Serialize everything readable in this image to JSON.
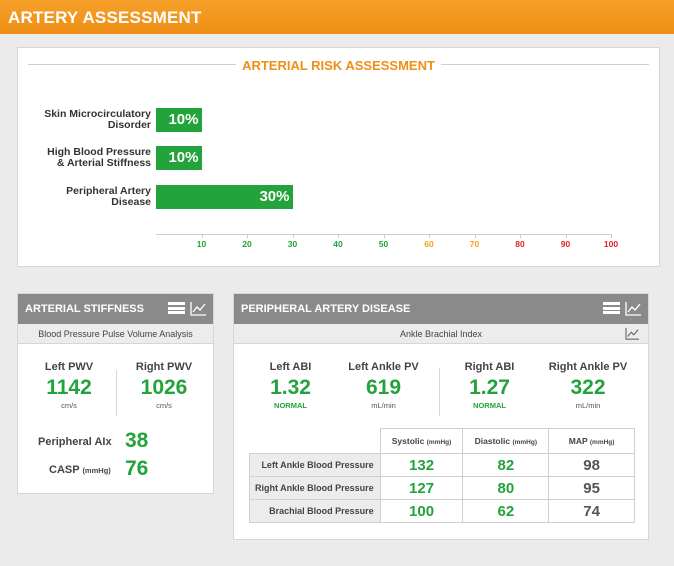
{
  "header": {
    "title": "ARTERY ASSESSMENT"
  },
  "risk": {
    "title": "ARTERIAL RISK ASSESSMENT",
    "items": [
      {
        "label_line1": "Skin Microcirculatory",
        "label_line2": "Disorder",
        "value": 10,
        "value_label": "10%"
      },
      {
        "label_line1": "High Blood Pressure",
        "label_line2": "& Arterial Stiffness",
        "value": 10,
        "value_label": "10%"
      },
      {
        "label_line1": "Peripheral Artery",
        "label_line2": "Disease",
        "value": 30,
        "value_label": "30%"
      }
    ],
    "axis": {
      "ticks": [
        "10",
        "20",
        "30",
        "40",
        "50",
        "60",
        "70",
        "80",
        "90",
        "100"
      ],
      "tick_colors": [
        "#23a33b",
        "#23a33b",
        "#23a33b",
        "#23a33b",
        "#23a33b",
        "#f2a21c",
        "#f2a21c",
        "#e0202a",
        "#e0202a",
        "#e0202a"
      ],
      "max": 100
    },
    "bar_color": "#23a33b"
  },
  "stiffness": {
    "title": "ARTERIAL STIFFNESS",
    "subtitle": "Blood Pressure Pulse Volume Analysis",
    "left_pwv": {
      "label": "Left PWV",
      "value": "1142",
      "unit": "cm/s"
    },
    "right_pwv": {
      "label": "Right PWV",
      "value": "1026",
      "unit": "cm/s"
    },
    "peripheral_aix": {
      "label": "Peripheral AIx",
      "value": "38"
    },
    "casp": {
      "label": "CASP",
      "unit": "(mmHg)",
      "value": "76"
    }
  },
  "pad": {
    "title": "PERIPHERAL ARTERY DISEASE",
    "subtitle": "Ankle Brachial Index",
    "left_abi": {
      "label": "Left ABI",
      "value": "1.32",
      "status": "NORMAL"
    },
    "left_ankle_pv": {
      "label": "Left Ankle PV",
      "value": "619",
      "unit": "mL/min"
    },
    "right_abi": {
      "label": "Right ABI",
      "value": "1.27",
      "status": "NORMAL"
    },
    "right_ankle_pv": {
      "label": "Right Ankle PV",
      "value": "322",
      "unit": "mL/min"
    },
    "table": {
      "columns": [
        {
          "label": "Systolic",
          "unit": "(mmHg)"
        },
        {
          "label": "Diastolic",
          "unit": "(mmHg)"
        },
        {
          "label": "MAP",
          "unit": "(mmHg)"
        }
      ],
      "rows": [
        {
          "label": "Left Ankle Blood Pressure",
          "systolic": "132",
          "diastolic": "82",
          "map": "98"
        },
        {
          "label": "Right Ankle Blood Pressure",
          "systolic": "127",
          "diastolic": "80",
          "map": "95"
        },
        {
          "label": "Brachial Blood Pressure",
          "systolic": "100",
          "diastolic": "62",
          "map": "74"
        }
      ]
    }
  },
  "icons": {
    "list": "list-icon",
    "chart": "line-chart-icon"
  },
  "colors": {
    "accent": "#ef8f16",
    "good": "#23a33b",
    "panel_header": "#8a8a8a"
  }
}
